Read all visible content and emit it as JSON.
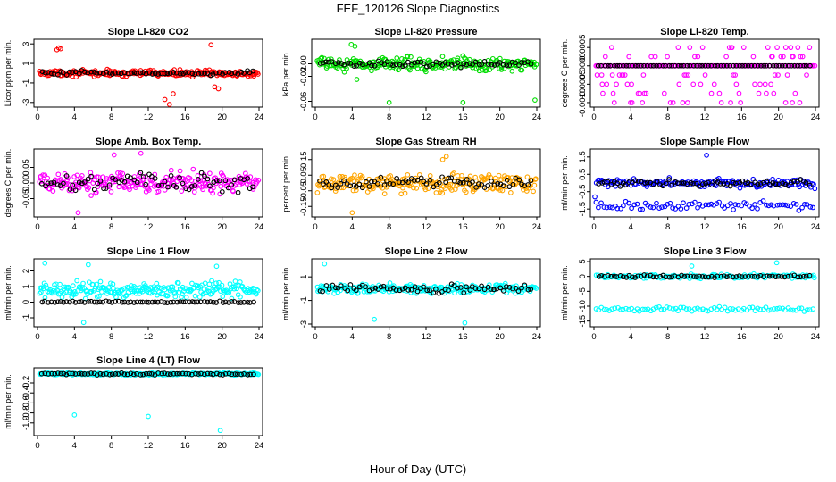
{
  "title": "FEF_120126  Slope Diagnostics",
  "xlabel": "Hour of Day (UTC)",
  "colors": {
    "black_series": "#000000"
  },
  "chart_data": [
    {
      "type": "scatter",
      "title": "Slope Li-820 CO2",
      "ylabel": "Licor ppm per min.",
      "color": "#ff0000",
      "xlim": [
        0,
        24
      ],
      "xticks": [
        0,
        4,
        8,
        12,
        16,
        20,
        24
      ],
      "xtick_labels": [
        "0",
        "4",
        "8",
        "12",
        "16",
        "20",
        "24"
      ],
      "ylim": [
        -3.2,
        3.2
      ],
      "yticks": [
        -3,
        -1,
        1,
        3
      ],
      "ytick_labels": [
        "-3",
        "-1",
        "1",
        "3"
      ],
      "grid": false,
      "spread": 0.35,
      "black_spread": 0.25,
      "outliers": [
        [
          2.1,
          2.4
        ],
        [
          2.3,
          2.6
        ],
        [
          2.5,
          2.5
        ],
        [
          13.8,
          -2.7
        ],
        [
          14.3,
          -3.3
        ],
        [
          14.7,
          -2.1
        ],
        [
          18.8,
          2.9
        ],
        [
          19.2,
          -1.4
        ],
        [
          19.6,
          -1.6
        ]
      ]
    },
    {
      "type": "scatter",
      "title": "Slope Li-820 Pressure",
      "ylabel": "kPa per min.",
      "color": "#00dd00",
      "xlim": [
        0,
        24
      ],
      "xticks": [
        0,
        4,
        8,
        12,
        16,
        20,
        24
      ],
      "xtick_labels": [
        "0",
        "4",
        "8",
        "12",
        "16",
        "20",
        "24"
      ],
      "ylim": [
        -0.065,
        0.035
      ],
      "yticks": [
        -0.06,
        -0.02,
        0.0
      ],
      "ytick_labels": [
        "-0.06",
        "-0.02",
        "0.00"
      ],
      "grid": false,
      "spread": 0.012,
      "black_spread": 0.006,
      "outliers": [
        [
          8.0,
          -0.062
        ],
        [
          16.0,
          -0.062
        ],
        [
          23.8,
          -0.058
        ],
        [
          3.9,
          0.031
        ],
        [
          4.3,
          0.028
        ],
        [
          4.5,
          -0.025
        ]
      ]
    },
    {
      "type": "scatter",
      "title": "Slope Li-820 Temp.",
      "ylabel": "degrees C per min.",
      "color": "#ff00ff",
      "xlim": [
        0,
        24
      ],
      "xticks": [
        0,
        4,
        8,
        12,
        16,
        20,
        24
      ],
      "xtick_labels": [
        "0",
        "4",
        "8",
        "12",
        "16",
        "20",
        "24"
      ],
      "ylim": [
        -0.00105,
        0.00065
      ],
      "yticks": [
        -0.001,
        -0.0005,
        0.0,
        0.0005
      ],
      "ytick_labels": [
        "-0.0010",
        "-0.0005",
        "0.0000",
        "0.0005"
      ],
      "grid": false,
      "levels": [
        0.0005,
        0.00025,
        0.0,
        -0.00025,
        -0.0005,
        -0.00075,
        -0.001
      ],
      "outliers": []
    },
    {
      "type": "scatter",
      "title": "Slope Amb. Box Temp.",
      "ylabel": "degrees C per min.",
      "color": "#ff00ff",
      "xlim": [
        0,
        24
      ],
      "xticks": [
        0,
        4,
        8,
        12,
        16,
        20,
        24
      ],
      "xtick_labels": [
        "0",
        "4",
        "8",
        "12",
        "16",
        "20",
        "24"
      ],
      "ylim": [
        -0.1,
        0.1
      ],
      "yticks": [
        -0.05,
        0.0,
        0.05
      ],
      "ytick_labels": [
        "-0.05",
        "0.00",
        "0.05"
      ],
      "grid": false,
      "spread": 0.04,
      "black_spread": 0.035,
      "outliers": [
        [
          8.3,
          0.09
        ],
        [
          11.2,
          0.095
        ],
        [
          4.4,
          -0.095
        ]
      ]
    },
    {
      "type": "scatter",
      "title": "Slope Gas Stream RH",
      "ylabel": "percent per min.",
      "color": "#ffa500",
      "xlim": [
        0,
        24
      ],
      "xticks": [
        0,
        4,
        8,
        12,
        16,
        20,
        24
      ],
      "xtick_labels": [
        "0",
        "4",
        "8",
        "12",
        "16",
        "20",
        "24"
      ],
      "ylim": [
        -0.2,
        0.2
      ],
      "yticks": [
        -0.15,
        -0.05,
        0.05,
        0.15
      ],
      "ytick_labels": [
        "-0.15",
        "-0.05",
        "0.05",
        "0.15"
      ],
      "grid": false,
      "spread": 0.07,
      "black_spread": 0.05,
      "outliers": [
        [
          4.0,
          -0.19
        ],
        [
          14.2,
          0.17
        ],
        [
          13.8,
          0.15
        ]
      ]
    },
    {
      "type": "scatter",
      "title": "Slope Sample Flow",
      "ylabel": "ml/min per min.",
      "color": "#0000ff",
      "xlim": [
        0,
        24
      ],
      "xticks": [
        0,
        4,
        8,
        12,
        16,
        20,
        24
      ],
      "xtick_labels": [
        "0",
        "4",
        "8",
        "12",
        "16",
        "20",
        "24"
      ],
      "ylim": [
        -1.8,
        1.8
      ],
      "yticks": [
        -1.5,
        -0.5,
        0.5,
        1.5
      ],
      "ytick_labels": [
        "-1.5",
        "-0.5",
        "0.5",
        "1.5"
      ],
      "grid": false,
      "spread": 0.3,
      "black_spread": 0.2,
      "second_band": -1.3,
      "outliers": [
        [
          12.2,
          1.6
        ],
        [
          0.1,
          -0.8
        ]
      ]
    },
    {
      "type": "scatter",
      "title": "Slope Line 1 Flow",
      "ylabel": "ml/min per min.",
      "color": "#00ffff",
      "xlim": [
        0,
        24
      ],
      "xticks": [
        0,
        4,
        8,
        12,
        16,
        20,
        24
      ],
      "xtick_labels": [
        "0",
        "4",
        "8",
        "12",
        "16",
        "20",
        "24"
      ],
      "ylim": [
        -1.4,
        2.6
      ],
      "yticks": [
        -1,
        0,
        1,
        2
      ],
      "ytick_labels": [
        "-1",
        "0",
        "1",
        "2"
      ],
      "grid": false,
      "cyan_center": 0.8,
      "spread": 0.6,
      "black_spread": 0.06,
      "outliers": [
        [
          5.0,
          -1.3
        ],
        [
          0.8,
          2.5
        ],
        [
          5.5,
          2.4
        ],
        [
          19.4,
          2.3
        ]
      ]
    },
    {
      "type": "scatter",
      "title": "Slope Line 2 Flow",
      "ylabel": "ml/min per min.",
      "color": "#00ffff",
      "xlim": [
        0,
        24
      ],
      "xticks": [
        0,
        4,
        8,
        12,
        16,
        20,
        24
      ],
      "xtick_labels": [
        "0",
        "4",
        "8",
        "12",
        "16",
        "20",
        "24"
      ],
      "ylim": [
        -3.0,
        2.3
      ],
      "yticks": [
        -3,
        -1,
        1
      ],
      "ytick_labels": [
        "-3",
        "-1",
        "1"
      ],
      "grid": false,
      "spread": 0.5,
      "black_spread": 0.45,
      "outliers": [
        [
          1.0,
          2.1
        ],
        [
          16.2,
          -2.9
        ],
        [
          6.4,
          -2.6
        ]
      ]
    },
    {
      "type": "scatter",
      "title": "Slope Line 3 Flow",
      "ylabel": "ml/min per min.",
      "color": "#00ffff",
      "xlim": [
        0,
        24
      ],
      "xticks": [
        0,
        4,
        8,
        12,
        16,
        20,
        24
      ],
      "xtick_labels": [
        "0",
        "4",
        "8",
        "12",
        "16",
        "20",
        "24"
      ],
      "ylim": [
        -16,
        5
      ],
      "yticks": [
        -15,
        -10,
        -5,
        0,
        5
      ],
      "ytick_labels": [
        "-15",
        "-10",
        "-5",
        "0",
        "5"
      ],
      "grid": false,
      "spread": 0.8,
      "black_spread": 0.5,
      "second_band": -11,
      "outliers": [
        [
          19.8,
          4.6
        ],
        [
          10.6,
          3.5
        ]
      ]
    },
    {
      "type": "scatter",
      "title": "Slope Line 4 (LT) Flow",
      "ylabel": "ml/min per min.",
      "color": "#00ffff",
      "xlim": [
        0,
        24
      ],
      "xticks": [
        0,
        4,
        8,
        12,
        16,
        20,
        24
      ],
      "xtick_labels": [
        "0",
        "4",
        "8",
        "12",
        "16",
        "20",
        "24"
      ],
      "ylim": [
        -1.2,
        0.05
      ],
      "yticks": [
        -1.0,
        -0.8,
        -0.6,
        -0.4,
        -0.2
      ],
      "ytick_labels": [
        "-1.0",
        "-0.8",
        "-0.6",
        "-0.4",
        "-0.2"
      ],
      "grid": false,
      "center": -0.02,
      "spread": 0.025,
      "black_spread": 0.02,
      "outliers": [
        [
          4.0,
          -0.84
        ],
        [
          12.0,
          -0.87
        ],
        [
          19.8,
          -1.15
        ]
      ]
    }
  ]
}
